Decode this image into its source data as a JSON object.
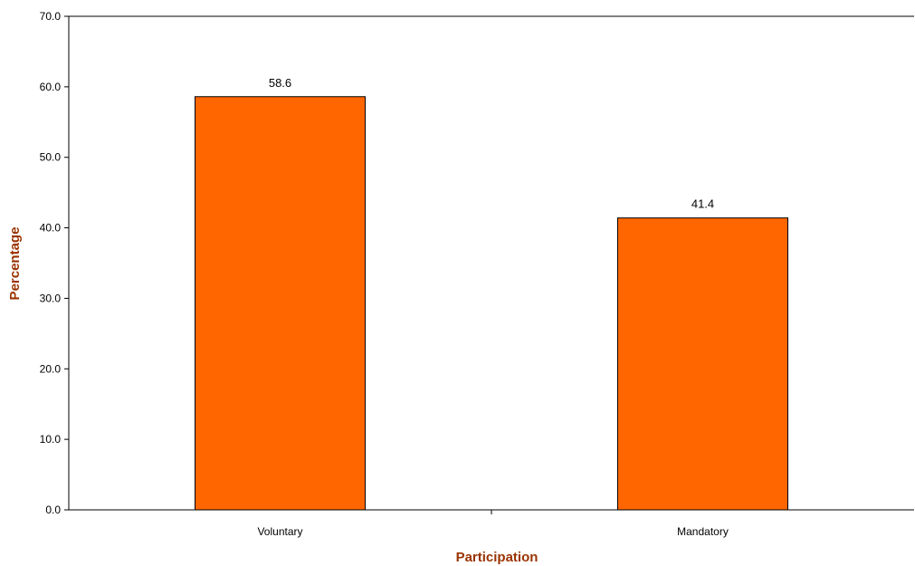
{
  "chart_data": {
    "type": "bar",
    "title": "",
    "xlabel": "Participation",
    "ylabel": "Percentage",
    "categories": [
      "Voluntary",
      "Mandatory"
    ],
    "values": [
      58.6,
      41.4
    ],
    "value_labels": [
      "58.6",
      "41.4"
    ],
    "ylim": [
      0,
      70
    ],
    "yticks": [
      "0.0",
      "10.0",
      "20.0",
      "30.0",
      "40.0",
      "50.0",
      "60.0",
      "70.0"
    ],
    "grid": false,
    "legend": "none",
    "colors": {
      "bar": "#ff6600",
      "bar_stroke": "#000000",
      "axis_title": "#993300"
    }
  }
}
